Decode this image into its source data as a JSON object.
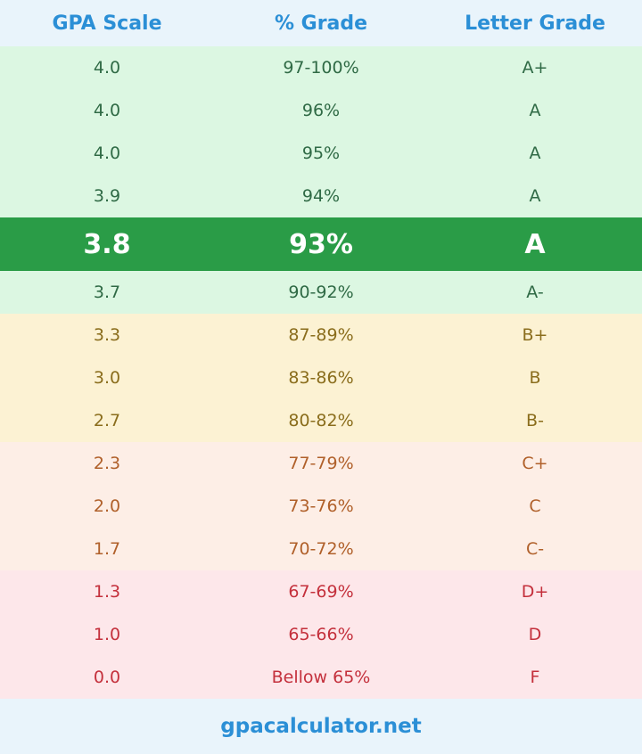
{
  "table": {
    "header": [
      "GPA Scale",
      "% Grade",
      "Letter Grade"
    ],
    "rows": [
      [
        "4.0",
        "97-100%",
        "A+"
      ],
      [
        "4.0",
        "96%",
        "A"
      ],
      [
        "4.0",
        "95%",
        "A"
      ],
      [
        "3.9",
        "94%",
        "A"
      ],
      [
        "3.8",
        "93%",
        "A"
      ],
      [
        "3.7",
        "90-92%",
        "A-"
      ],
      [
        "3.3",
        "87-89%",
        "B+"
      ],
      [
        "3.0",
        "83-86%",
        "B"
      ],
      [
        "2.7",
        "80-82%",
        "B-"
      ],
      [
        "2.3",
        "77-79%",
        "C+"
      ],
      [
        "2.0",
        "73-76%",
        "C"
      ],
      [
        "1.7",
        "70-72%",
        "C-"
      ],
      [
        "1.3",
        "67-69%",
        "D+"
      ],
      [
        "1.0",
        "65-66%",
        "D"
      ],
      [
        "0.0",
        "Bellow 65%",
        "F"
      ]
    ]
  },
  "footer": "gpacalculator.net"
}
